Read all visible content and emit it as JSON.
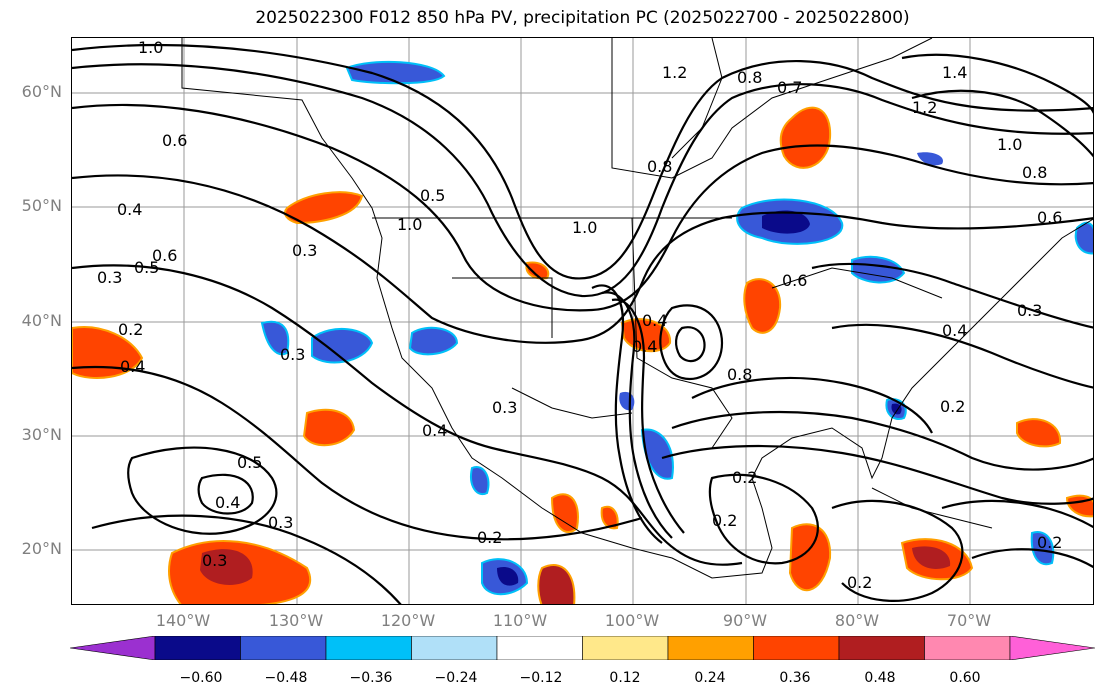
{
  "title": "2025022300 F012 850 hPa PV, precipitation PC (2025022700 - 2025022800)",
  "lat_labels": [
    "60°N",
    "50°N",
    "40°N",
    "30°N",
    "20°N"
  ],
  "lon_labels": [
    "140°W",
    "130°W",
    "120°W",
    "110°W",
    "100°W",
    "90°W",
    "80°W",
    "70°W"
  ],
  "colorbar": {
    "colors": [
      "#9b30d0",
      "#0a0a8a",
      "#3858d8",
      "#00c0f8",
      "#b0e0f8",
      "#ffffff",
      "#ffe88a",
      "#ffa000",
      "#ff4400",
      "#b01e20",
      "#ff88b0",
      "#ff60d8"
    ],
    "tick_labels": [
      "−0.60",
      "−0.48",
      "−0.36",
      "−0.24",
      "−0.12",
      "0.12",
      "0.24",
      "0.36",
      "0.48",
      "0.60"
    ]
  },
  "contour_labels": [
    "1.0",
    "1.2",
    "0.8",
    "0.7",
    "1.4",
    "1.2",
    "1.0",
    "0.8",
    "0.6",
    "0.5",
    "0.4",
    "0.3",
    "0.6",
    "0.5",
    "0.3",
    "0.2",
    "0.4",
    "0.3",
    "1.0",
    "0.6",
    "0.8",
    "0.4",
    "0.3",
    "0.3",
    "0.4",
    "0.2",
    "0.5",
    "0.4",
    "0.3",
    "0.2",
    "0.3",
    "0.2",
    "0.2",
    "0.2",
    "0.2",
    "0.4",
    "0.4",
    "0.8",
    "1.0",
    "0.6"
  ]
}
